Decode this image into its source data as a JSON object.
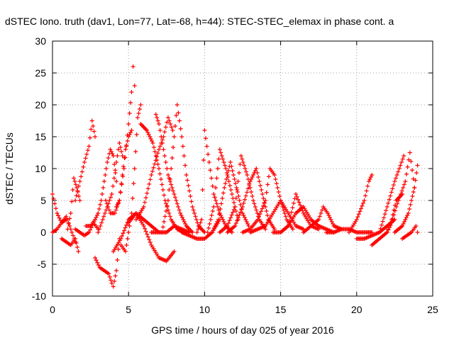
{
  "chart_data": {
    "type": "scatter",
    "title": "dSTEC Iono. truth (dav1, Lon=77, Lat=-68, h=44): STEC-STEC_elemax in phase cont. a",
    "xlabel": "GPS time / hours of day 025 of year 2016",
    "ylabel": "dSTEC  / TECUs",
    "xlim": [
      0,
      25
    ],
    "ylim": [
      -10,
      30
    ],
    "x_ticks": [
      0,
      5,
      10,
      15,
      20,
      25
    ],
    "y_ticks": [
      -10,
      -5,
      0,
      5,
      10,
      15,
      20,
      25,
      30
    ],
    "x_tick_labels": [
      "0",
      "5",
      "10",
      "15",
      "20",
      "25"
    ],
    "y_tick_labels": [
      "-10",
      "-5",
      "0",
      "5",
      "10",
      "15",
      "20",
      "25",
      "30"
    ],
    "grid": true,
    "marker": "+",
    "color": "#ff0000",
    "series": [
      {
        "x": [
          0.0,
          0.3,
          0.6,
          0.9,
          1.2,
          1.5
        ],
        "y": [
          6,
          3,
          1.5,
          2.5,
          0.5,
          -1.5
        ]
      },
      {
        "x": [
          0.0,
          0.3,
          0.6,
          0.9
        ],
        "y": [
          0,
          0.5,
          1.5,
          2
        ]
      },
      {
        "x": [
          0.6,
          0.9,
          1.2,
          1.5,
          1.7
        ],
        "y": [
          -1,
          -1.5,
          -2,
          -1,
          -3
        ]
      },
      {
        "x": [
          1.0,
          1.2,
          1.4,
          1.6,
          1.8
        ],
        "y": [
          0.5,
          3,
          8.5,
          7,
          5
        ]
      },
      {
        "x": [
          1.5,
          1.8,
          2.1,
          2.4,
          2.6,
          2.8
        ],
        "y": [
          5,
          8,
          11,
          13.5,
          17.5,
          15
        ]
      },
      {
        "x": [
          1.5,
          1.8,
          2.1,
          2.4,
          2.7,
          3.0
        ],
        "y": [
          0.5,
          0,
          -0.5,
          0,
          1.5,
          0.5
        ]
      },
      {
        "x": [
          2.2,
          2.5,
          2.8,
          3.0,
          3.2,
          3.4,
          3.6,
          3.8,
          4.0,
          4.2
        ],
        "y": [
          1,
          1,
          2,
          3,
          5,
          8,
          11,
          13,
          12,
          8
        ]
      },
      {
        "x": [
          2.8,
          3.1,
          3.4,
          3.7,
          3.9,
          4.0,
          4.2,
          4.4
        ],
        "y": [
          -4,
          -5.5,
          -6,
          -6.5,
          -8,
          -8.5,
          -6,
          -1
        ]
      },
      {
        "x": [
          3.0,
          3.3,
          3.6,
          3.9,
          4.2,
          4.4,
          4.6
        ],
        "y": [
          0,
          2,
          4,
          6,
          11,
          14,
          12
        ]
      },
      {
        "x": [
          3.5,
          3.8,
          4.1,
          4.4,
          4.7,
          5.0,
          5.2,
          5.3,
          5.4
        ],
        "y": [
          5,
          3,
          3,
          5,
          10,
          17,
          22,
          26,
          23
        ]
      },
      {
        "x": [
          4.2,
          4.4,
          4.6,
          4.8,
          5.0,
          5.2
        ],
        "y": [
          4,
          5,
          9,
          13,
          15,
          16
        ]
      },
      {
        "x": [
          4.5,
          4.8,
          5.0,
          5.2,
          5.4,
          5.6,
          5.8
        ],
        "y": [
          -2,
          -3,
          0,
          3,
          10,
          18,
          20
        ]
      },
      {
        "x": [
          5.0,
          5.5,
          6.0,
          6.5,
          7.0,
          7.5,
          8.0
        ],
        "y": [
          1.5,
          3,
          1,
          -2,
          -4,
          -4.5,
          -3
        ]
      },
      {
        "x": [
          4.0,
          4.5,
          5.0,
          5.5,
          6.0,
          6.5,
          7.0
        ],
        "y": [
          -3,
          -1,
          2,
          3,
          2,
          1,
          0
        ]
      },
      {
        "x": [
          5.5,
          6.0,
          6.5,
          7.0,
          7.3,
          7.6,
          7.9
        ],
        "y": [
          2,
          4,
          9,
          13,
          15,
          18,
          16
        ]
      },
      {
        "x": [
          5.8,
          6.2,
          6.6,
          7.0,
          7.4,
          7.8,
          8.2,
          8.6,
          9.0
        ],
        "y": [
          17,
          16,
          14,
          10,
          5,
          2,
          0.5,
          0,
          0
        ]
      },
      {
        "x": [
          6.5,
          7.0,
          7.5,
          8.0,
          8.5,
          9.0
        ],
        "y": [
          0,
          0,
          0,
          1,
          0.5,
          0
        ]
      },
      {
        "x": [
          6.8,
          7.0,
          7.3,
          7.6,
          8.0,
          8.4,
          8.8,
          9.2
        ],
        "y": [
          18.5,
          17,
          13,
          9,
          6,
          3,
          1,
          0
        ]
      },
      {
        "x": [
          7.2,
          7.6,
          8.0,
          8.2,
          8.5,
          8.8,
          9.2,
          9.6,
          10.0
        ],
        "y": [
          0,
          5,
          15,
          20,
          15,
          9,
          4,
          1,
          0
        ]
      },
      {
        "x": [
          8.5,
          9.0,
          9.5,
          10.0,
          10.5,
          11.0
        ],
        "y": [
          0,
          -0.5,
          -1,
          -1,
          0,
          2
        ]
      },
      {
        "x": [
          9.5,
          9.8,
          10.0,
          10.3,
          10.6,
          11.0,
          11.4,
          11.8
        ],
        "y": [
          0,
          2,
          16,
          11,
          6,
          3,
          1,
          0
        ]
      },
      {
        "x": [
          10.2,
          10.6,
          11.0,
          11.4,
          11.8,
          12.2
        ],
        "y": [
          0,
          4,
          13,
          10,
          6,
          2
        ]
      },
      {
        "x": [
          10.5,
          10.9,
          11.3,
          11.7,
          12.1,
          12.5,
          12.9
        ],
        "y": [
          0,
          2,
          7,
          11,
          7,
          3,
          1
        ]
      },
      {
        "x": [
          11.0,
          11.5,
          12.0,
          12.4,
          12.8,
          13.2,
          13.6,
          14.0
        ],
        "y": [
          0,
          1,
          4,
          12,
          9,
          5,
          2,
          0.5
        ]
      },
      {
        "x": [
          11.5,
          12.0,
          12.5,
          13.0,
          13.4,
          13.8,
          14.2,
          14.6
        ],
        "y": [
          0,
          1,
          4,
          8,
          10,
          6,
          2,
          0.5
        ]
      },
      {
        "x": [
          12.5,
          13.0,
          13.5,
          14.0,
          14.3,
          14.6,
          15.0,
          15.4,
          15.8
        ],
        "y": [
          0,
          0.5,
          2,
          5,
          10,
          9,
          5,
          2,
          0.5
        ]
      },
      {
        "x": [
          13.0,
          13.5,
          14.0,
          14.5,
          15.0,
          15.5,
          16.0,
          16.5
        ],
        "y": [
          0,
          0.5,
          1,
          3,
          5,
          3,
          1,
          0.5
        ]
      },
      {
        "x": [
          14.5,
          15.0,
          15.5,
          16.0,
          16.5,
          17.0,
          17.5
        ],
        "y": [
          0,
          0,
          1,
          6,
          3,
          1,
          0.5
        ]
      },
      {
        "x": [
          15.0,
          15.5,
          16.0,
          16.5,
          17.0,
          17.5,
          18.0,
          18.5
        ],
        "y": [
          0,
          1,
          3,
          4,
          2,
          1,
          0.5,
          0
        ]
      },
      {
        "x": [
          16.5,
          17.0,
          17.5,
          17.8,
          18.1,
          18.5,
          19.0
        ],
        "y": [
          0,
          1,
          2,
          4,
          3,
          1,
          0.5
        ]
      },
      {
        "x": [
          18.0,
          18.5,
          19.0,
          19.5,
          20.0,
          20.5,
          21.0
        ],
        "y": [
          0,
          0,
          0.5,
          0.5,
          0,
          0,
          0
        ]
      },
      {
        "x": [
          19.5,
          20.0,
          20.5,
          20.8,
          21.0
        ],
        "y": [
          0,
          2,
          5,
          8,
          9
        ]
      },
      {
        "x": [
          20.0,
          20.5,
          21.0,
          21.5,
          22.0,
          22.5
        ],
        "y": [
          -1,
          -1,
          -0.5,
          0,
          1,
          2
        ]
      },
      {
        "x": [
          21.0,
          21.5,
          22.0,
          22.3,
          22.6,
          23.0
        ],
        "y": [
          -2,
          -1,
          0,
          2,
          5,
          6
        ]
      },
      {
        "x": [
          21.5,
          22.0,
          22.5,
          22.8,
          23.1
        ],
        "y": [
          0,
          4,
          8,
          10,
          12
        ]
      },
      {
        "x": [
          22.0,
          22.3,
          22.6,
          22.9,
          23.2,
          23.5,
          23.8
        ],
        "y": [
          0,
          1.5,
          4,
          6,
          8,
          12.5,
          7
        ]
      },
      {
        "x": [
          22.5,
          23.0,
          23.4,
          23.8,
          24.0
        ],
        "y": [
          0,
          1,
          3,
          7,
          10.5
        ]
      },
      {
        "x": [
          23.0,
          23.3,
          23.6,
          23.9,
          24.0
        ],
        "y": [
          -1,
          -0.5,
          0,
          1,
          0
        ]
      }
    ]
  }
}
